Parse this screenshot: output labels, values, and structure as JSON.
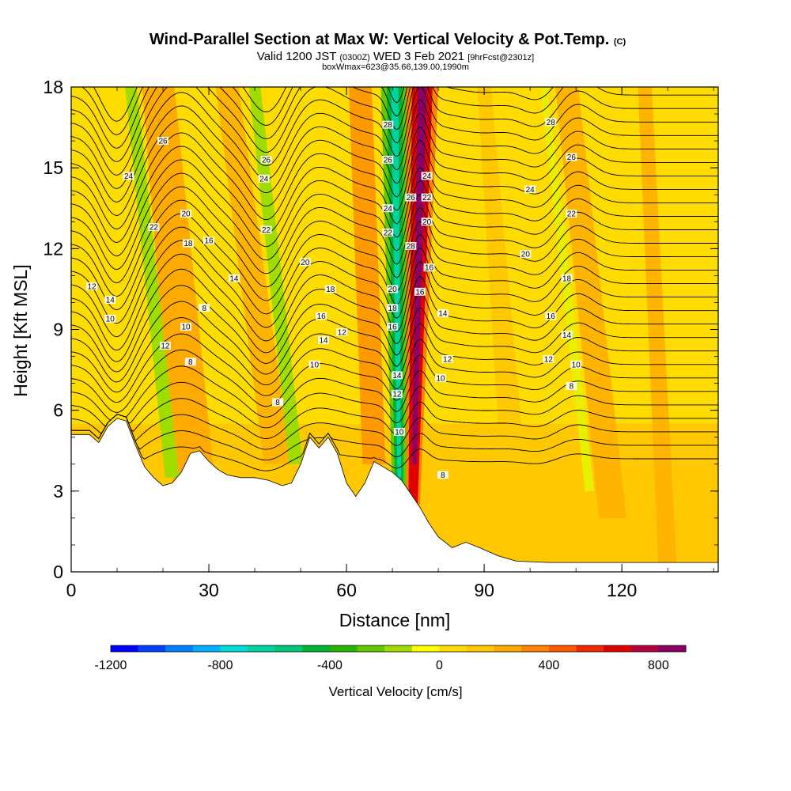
{
  "chart_data": {
    "type": "heatmap",
    "title": "Wind-Parallel Section at Max W: Vertical Velocity & Pot.Temp.",
    "title_mark": "(C)",
    "subtitle": {
      "p1": "Valid 1200 JST ",
      "p2": "(0300Z)",
      "p3": " WED 3 Feb 2021 ",
      "p4": "[9hrFcst@2301z]"
    },
    "subtitle2": "boxWmax=623@35.66,139.00,1990m",
    "xlabel": "Distance [nm]",
    "ylabel": "Height [Kft MSL]",
    "xlim": [
      0,
      141
    ],
    "ylim": [
      0,
      18
    ],
    "x_ticks": [
      0,
      30,
      60,
      90,
      120
    ],
    "y_ticks": [
      0,
      3,
      6,
      9,
      12,
      15,
      18
    ],
    "colorbar": {
      "label": "Vertical Velocity [cm/s]",
      "range": [
        -1200,
        900
      ],
      "step": 100,
      "ticks": [
        -1200,
        -800,
        -400,
        0,
        400,
        800
      ],
      "colors": [
        "#0000ff",
        "#0040ff",
        "#0080ff",
        "#00b0ff",
        "#00dcdc",
        "#00d2a0",
        "#00c878",
        "#00b432",
        "#28b400",
        "#64c800",
        "#a0dc00",
        "#ffff00",
        "#ffdc00",
        "#ffc800",
        "#ffaa00",
        "#ff8200",
        "#ff5a00",
        "#f02800",
        "#e00000",
        "#b4003c",
        "#8c0064"
      ]
    },
    "terrain": [
      [
        0,
        5.1
      ],
      [
        4,
        5.1
      ],
      [
        6,
        4.8
      ],
      [
        8,
        5.4
      ],
      [
        10,
        5.7
      ],
      [
        12,
        5.6
      ],
      [
        14,
        4.7
      ],
      [
        16,
        3.9
      ],
      [
        18,
        3.5
      ],
      [
        20,
        3.2
      ],
      [
        22,
        3.3
      ],
      [
        24,
        3.7
      ],
      [
        26,
        4.4
      ],
      [
        28,
        4.5
      ],
      [
        30,
        4.1
      ],
      [
        32,
        3.8
      ],
      [
        34,
        3.6
      ],
      [
        37,
        3.5
      ],
      [
        40,
        3.5
      ],
      [
        43,
        3.4
      ],
      [
        46,
        3.2
      ],
      [
        48,
        3.3
      ],
      [
        50,
        4.0
      ],
      [
        52,
        5.0
      ],
      [
        54,
        4.6
      ],
      [
        56,
        5.0
      ],
      [
        58,
        4.4
      ],
      [
        60,
        3.3
      ],
      [
        62,
        2.8
      ],
      [
        64,
        3.3
      ],
      [
        66,
        4.1
      ],
      [
        68,
        3.9
      ],
      [
        70,
        3.7
      ],
      [
        72,
        3.4
      ],
      [
        74,
        2.9
      ],
      [
        76,
        2.4
      ],
      [
        78,
        1.8
      ],
      [
        80,
        1.3
      ],
      [
        83,
        0.9
      ],
      [
        86,
        1.1
      ],
      [
        89,
        0.9
      ],
      [
        93,
        0.6
      ],
      [
        97,
        0.4
      ],
      [
        104,
        0.35
      ],
      [
        110,
        0.35
      ],
      [
        141,
        0.35
      ]
    ],
    "isentrope_labels": [
      {
        "x": 20,
        "y": 16.0,
        "t": "26"
      },
      {
        "x": 12.5,
        "y": 14.7,
        "t": "24"
      },
      {
        "x": 18,
        "y": 12.8,
        "t": "22"
      },
      {
        "x": 25,
        "y": 13.3,
        "t": "20"
      },
      {
        "x": 25.5,
        "y": 12.2,
        "t": "18"
      },
      {
        "x": 30,
        "y": 12.3,
        "t": "16"
      },
      {
        "x": 35.5,
        "y": 10.9,
        "t": "14"
      },
      {
        "x": 4.5,
        "y": 10.6,
        "t": "12"
      },
      {
        "x": 8.5,
        "y": 10.1,
        "t": "14"
      },
      {
        "x": 8.5,
        "y": 9.4,
        "t": "10"
      },
      {
        "x": 20.5,
        "y": 8.4,
        "t": "12"
      },
      {
        "x": 25,
        "y": 9.1,
        "t": "10"
      },
      {
        "x": 29,
        "y": 9.8,
        "t": "8"
      },
      {
        "x": 26,
        "y": 7.8,
        "t": "8"
      },
      {
        "x": 42.5,
        "y": 15.3,
        "t": "26"
      },
      {
        "x": 42,
        "y": 14.6,
        "t": "24"
      },
      {
        "x": 42.5,
        "y": 12.7,
        "t": "22"
      },
      {
        "x": 51,
        "y": 11.5,
        "t": "20"
      },
      {
        "x": 56.5,
        "y": 10.5,
        "t": "18"
      },
      {
        "x": 54.5,
        "y": 9.5,
        "t": "16"
      },
      {
        "x": 55,
        "y": 8.6,
        "t": "14"
      },
      {
        "x": 59,
        "y": 8.9,
        "t": "12"
      },
      {
        "x": 53,
        "y": 7.7,
        "t": "10"
      },
      {
        "x": 45,
        "y": 6.3,
        "t": "8"
      },
      {
        "x": 69,
        "y": 16.6,
        "t": "28"
      },
      {
        "x": 69,
        "y": 15.3,
        "t": "26"
      },
      {
        "x": 69,
        "y": 13.5,
        "t": "24"
      },
      {
        "x": 69,
        "y": 12.6,
        "t": "22"
      },
      {
        "x": 70,
        "y": 10.5,
        "t": "20"
      },
      {
        "x": 70,
        "y": 9.8,
        "t": "18"
      },
      {
        "x": 70,
        "y": 9.1,
        "t": "16"
      },
      {
        "x": 71,
        "y": 7.3,
        "t": "14"
      },
      {
        "x": 71,
        "y": 6.6,
        "t": "12"
      },
      {
        "x": 71.5,
        "y": 5.2,
        "t": "10"
      },
      {
        "x": 74,
        "y": 13.9,
        "t": "26"
      },
      {
        "x": 74,
        "y": 12.1,
        "t": "28"
      },
      {
        "x": 77.5,
        "y": 14.7,
        "t": "24"
      },
      {
        "x": 77.5,
        "y": 13.9,
        "t": "22"
      },
      {
        "x": 77.5,
        "y": 13.0,
        "t": "20"
      },
      {
        "x": 78,
        "y": 11.3,
        "t": "16"
      },
      {
        "x": 76,
        "y": 10.4,
        "t": "16"
      },
      {
        "x": 81,
        "y": 9.6,
        "t": "14"
      },
      {
        "x": 82,
        "y": 7.9,
        "t": "12"
      },
      {
        "x": 80.5,
        "y": 7.2,
        "t": "10"
      },
      {
        "x": 81,
        "y": 3.6,
        "t": "8"
      },
      {
        "x": 104.5,
        "y": 16.7,
        "t": "28"
      },
      {
        "x": 109,
        "y": 15.4,
        "t": "26"
      },
      {
        "x": 100,
        "y": 14.2,
        "t": "24"
      },
      {
        "x": 109,
        "y": 13.3,
        "t": "22"
      },
      {
        "x": 99,
        "y": 11.8,
        "t": "20"
      },
      {
        "x": 108,
        "y": 10.9,
        "t": "18"
      },
      {
        "x": 104.5,
        "y": 9.5,
        "t": "16"
      },
      {
        "x": 108,
        "y": 8.8,
        "t": "14"
      },
      {
        "x": 104,
        "y": 7.9,
        "t": "12"
      },
      {
        "x": 110,
        "y": 7.7,
        "t": "10"
      },
      {
        "x": 109,
        "y": 6.9,
        "t": "8"
      }
    ]
  }
}
